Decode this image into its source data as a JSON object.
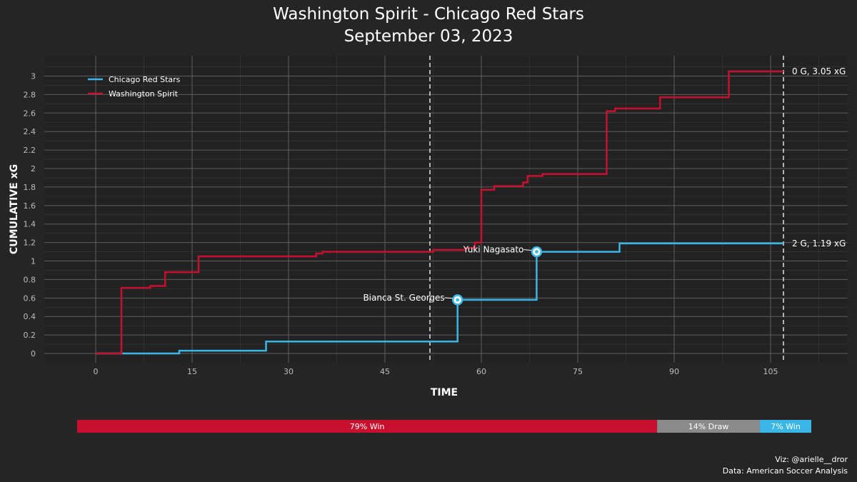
{
  "title": {
    "line1": "Washington Spirit - Chicago Red Stars",
    "line2": "September 03, 2023"
  },
  "credits": {
    "viz": "Viz: @arielle__dror",
    "data": "Data: American Soccer Analysis"
  },
  "chart_data": {
    "type": "line",
    "subtype": "step",
    "xlabel": "TIME",
    "ylabel": "CUMULATIVE xG",
    "xlim": [
      -8,
      117
    ],
    "ylim": [
      -0.1,
      3.22
    ],
    "xticks": [
      0,
      15,
      30,
      45,
      60,
      75,
      90,
      105
    ],
    "yticks": [
      0,
      0.2,
      0.4,
      0.6,
      0.8,
      1,
      1.2,
      1.4,
      1.6,
      1.8,
      2,
      2.2,
      2.4,
      2.6,
      2.8,
      3
    ],
    "grid": true,
    "legend_position": "top-left",
    "half_markers": [
      52,
      107
    ],
    "series": [
      {
        "name": "Chicago Red Stars",
        "color": "#3ab7e6",
        "end_label": "2 G, 1.19 xG",
        "points": [
          [
            0,
            0
          ],
          [
            4,
            0
          ],
          [
            13,
            0.03
          ],
          [
            26.5,
            0.13
          ],
          [
            56.3,
            0.58
          ],
          [
            68.6,
            1.1
          ],
          [
            81.5,
            1.19
          ],
          [
            107,
            1.19
          ]
        ]
      },
      {
        "name": "Washington Spirit",
        "color": "#c8102e",
        "end_label": "0 G, 3.05 xG",
        "points": [
          [
            0,
            0
          ],
          [
            4,
            0.71
          ],
          [
            8.5,
            0.73
          ],
          [
            10.8,
            0.88
          ],
          [
            16,
            1.05
          ],
          [
            34.3,
            1.08
          ],
          [
            35.3,
            1.1
          ],
          [
            52.5,
            1.12
          ],
          [
            57.5,
            1.14
          ],
          [
            59,
            1.2
          ],
          [
            60,
            1.77
          ],
          [
            62,
            1.81
          ],
          [
            66.5,
            1.85
          ],
          [
            67.2,
            1.92
          ],
          [
            69.5,
            1.94
          ],
          [
            79.5,
            2.62
          ],
          [
            80.8,
            2.65
          ],
          [
            87.8,
            2.77
          ],
          [
            98.5,
            3.05
          ],
          [
            107,
            3.05
          ]
        ]
      }
    ],
    "goals": [
      {
        "team": "Chicago Red Stars",
        "player": "Bianca St. Georges",
        "x": 56.3,
        "y": 0.58
      },
      {
        "team": "Chicago Red Stars",
        "player": "Yuki Nagasato",
        "x": 68.6,
        "y": 1.1
      }
    ]
  },
  "probabilities": [
    {
      "label": "79% Win",
      "value": 0.79,
      "color": "#c8102e"
    },
    {
      "label": "14% Draw",
      "value": 0.14,
      "color": "#8a8a8a"
    },
    {
      "label": "7% Win",
      "value": 0.07,
      "color": "#3ab7e6"
    }
  ]
}
